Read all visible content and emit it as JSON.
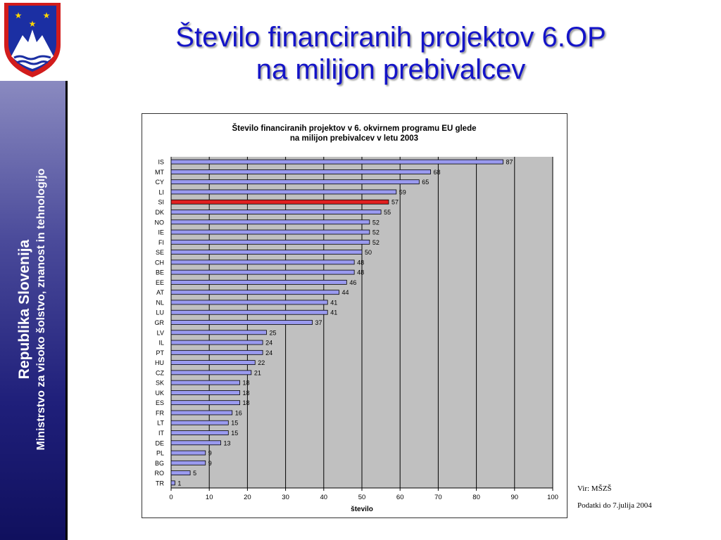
{
  "title": {
    "line1": "Število financiranih projektov 6.OP",
    "line2": "na milijon prebivalcev"
  },
  "sidebar": {
    "line1": "Republika Slovenija",
    "line2": "Ministrstvo za visoko šolstvo, znanost in tehnologijo"
  },
  "notes": {
    "source": "Vir: MŠZŠ",
    "date": "Podatki  do 7.julija 2004"
  },
  "colors": {
    "bar": "#9a9aef",
    "highlight": "#e02020",
    "plot_bg": "#c0c0c0",
    "title": "#1414c8",
    "sidebar": "#1f1f7a"
  },
  "icons": {
    "crest": "slovenia-coat-of-arms"
  },
  "chart_data": {
    "type": "bar",
    "orientation": "horizontal",
    "title_line1": "Število financiranih projektov v 6. okvirnem programu EU glede",
    "title_line2": "na milijon prebivalcev v letu 2003",
    "xlabel": "število",
    "ylabel": "",
    "xlim": [
      0,
      100
    ],
    "xticks": [
      0,
      10,
      20,
      30,
      40,
      50,
      60,
      70,
      80,
      90,
      100
    ],
    "grid": true,
    "highlight": "SI",
    "categories": [
      "IS",
      "MT",
      "CY",
      "LI",
      "SI",
      "DK",
      "NO",
      "IE",
      "FI",
      "SE",
      "CH",
      "BE",
      "EE",
      "AT",
      "NL",
      "LU",
      "GR",
      "LV",
      "IL",
      "PT",
      "HU",
      "CZ",
      "SK",
      "UK",
      "ES",
      "FR",
      "LT",
      "IT",
      "DE",
      "PL",
      "BG",
      "RO",
      "TR"
    ],
    "values": [
      87,
      68,
      65,
      59,
      57,
      55,
      52,
      52,
      52,
      50,
      48,
      48,
      46,
      44,
      41,
      41,
      37,
      25,
      24,
      24,
      22,
      21,
      18,
      18,
      18,
      16,
      15,
      15,
      13,
      9,
      9,
      5,
      1
    ]
  }
}
